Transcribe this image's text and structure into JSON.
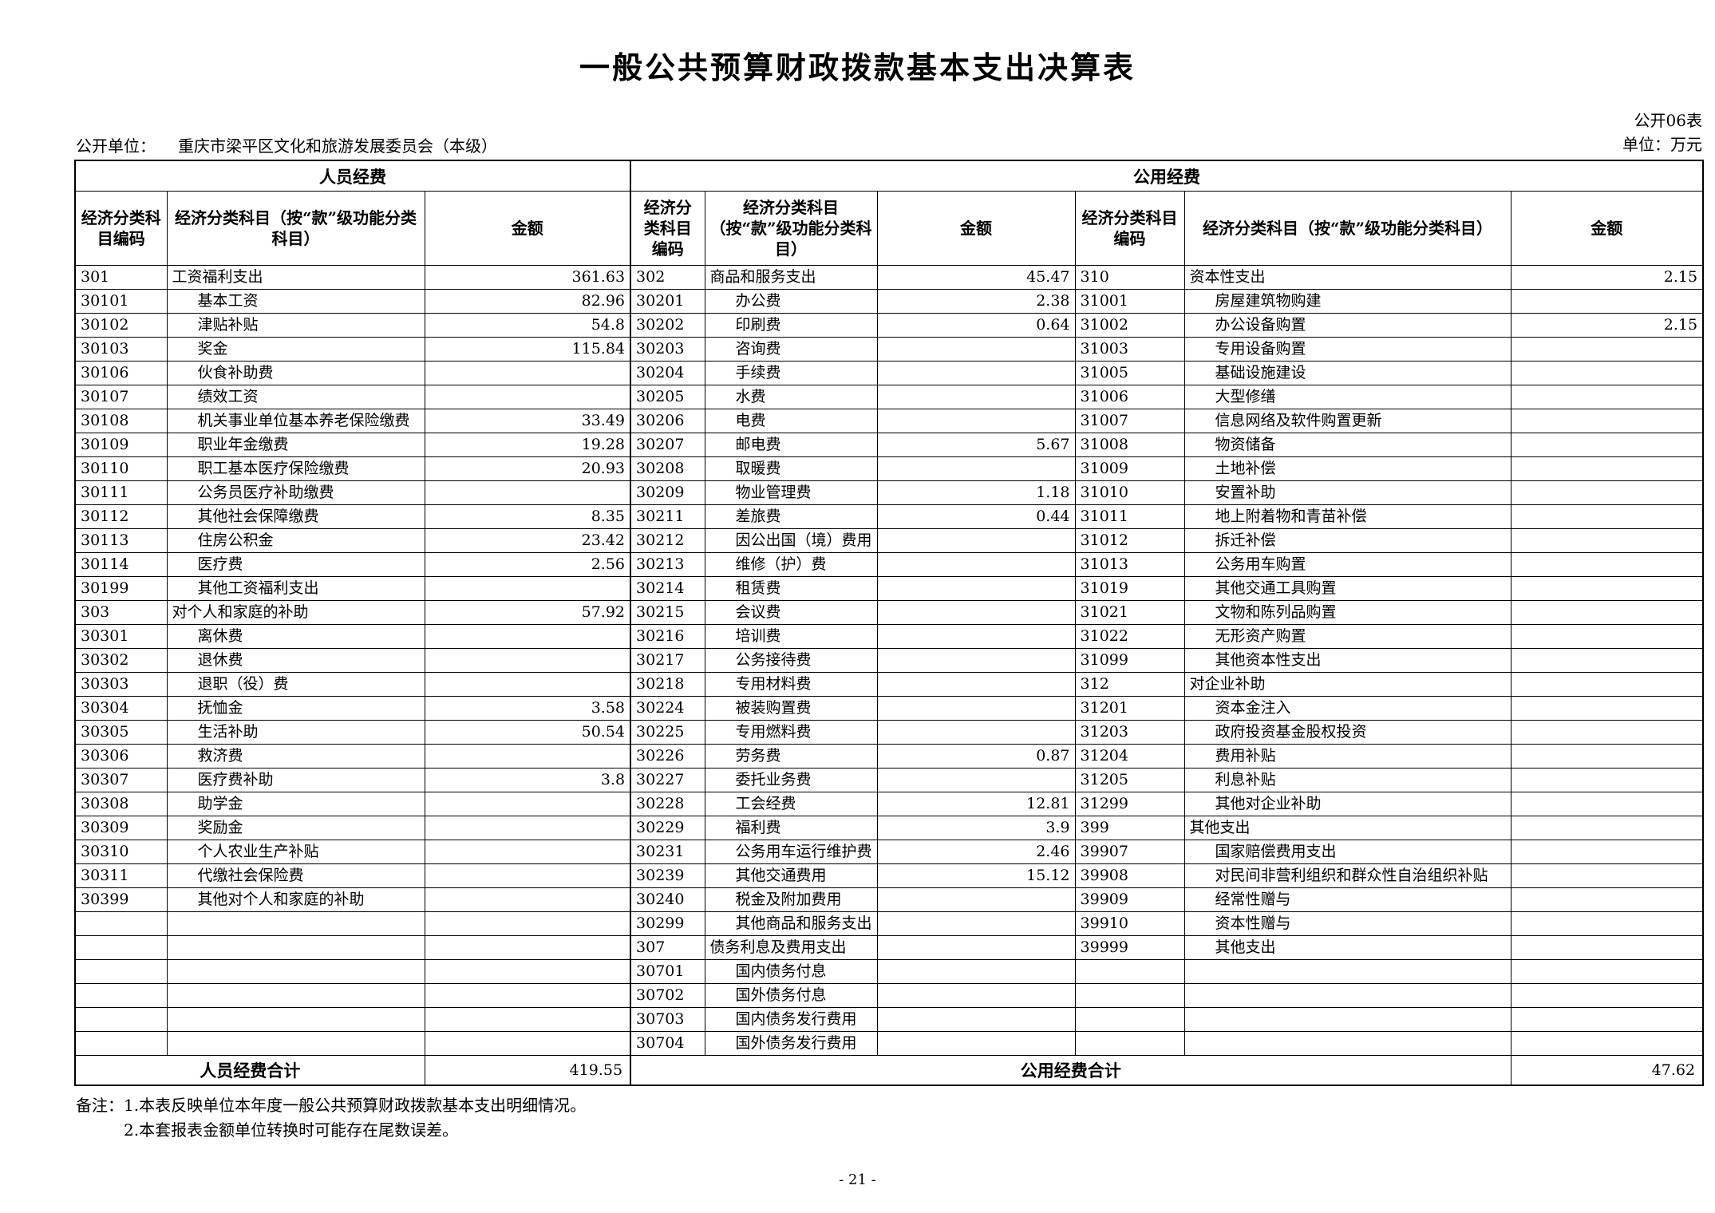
{
  "page": {
    "title": "一般公共预算财政拨款基本支出决算表",
    "form_code": "公开06表",
    "unit_label": "单位：万元",
    "publisher_label": "公开单位：",
    "publisher": "重庆市梁平区文化和旅游发展委员会（本级）",
    "notes_label": "备注：",
    "notes": [
      "1.本表反映单位本年度一般公共预算财政拨款基本支出明细情况。",
      "2.本套报表金额单位转换时可能存在尾数误差。"
    ],
    "page_number": "- 21 -"
  },
  "table": {
    "group_headers": [
      "人员经费",
      "公用经费"
    ],
    "columns": [
      "经济分类科目编码",
      "经济分类科目（按“款”级功能分类科目）",
      "金额"
    ],
    "rows": [
      [
        "301",
        "工资福利支出",
        "361.63",
        "302",
        "商品和服务支出",
        "45.47",
        "310",
        "资本性支出",
        "2.15"
      ],
      [
        "30101",
        "基本工资",
        "82.96",
        "30201",
        "办公费",
        "2.38",
        "31001",
        "房屋建筑物购建",
        ""
      ],
      [
        "30102",
        "津贴补贴",
        "54.8",
        "30202",
        "印刷费",
        "0.64",
        "31002",
        "办公设备购置",
        "2.15"
      ],
      [
        "30103",
        "奖金",
        "115.84",
        "30203",
        "咨询费",
        "",
        "31003",
        "专用设备购置",
        ""
      ],
      [
        "30106",
        "伙食补助费",
        "",
        "30204",
        "手续费",
        "",
        "31005",
        "基础设施建设",
        ""
      ],
      [
        "30107",
        "绩效工资",
        "",
        "30205",
        "水费",
        "",
        "31006",
        "大型修缮",
        ""
      ],
      [
        "30108",
        "机关事业单位基本养老保险缴费",
        "33.49",
        "30206",
        "电费",
        "",
        "31007",
        "信息网络及软件购置更新",
        ""
      ],
      [
        "30109",
        "职业年金缴费",
        "19.28",
        "30207",
        "邮电费",
        "5.67",
        "31008",
        "物资储备",
        ""
      ],
      [
        "30110",
        "职工基本医疗保险缴费",
        "20.93",
        "30208",
        "取暖费",
        "",
        "31009",
        "土地补偿",
        ""
      ],
      [
        "30111",
        "公务员医疗补助缴费",
        "",
        "30209",
        "物业管理费",
        "1.18",
        "31010",
        "安置补助",
        ""
      ],
      [
        "30112",
        "其他社会保障缴费",
        "8.35",
        "30211",
        "差旅费",
        "0.44",
        "31011",
        "地上附着物和青苗补偿",
        ""
      ],
      [
        "30113",
        "住房公积金",
        "23.42",
        "30212",
        "因公出国（境）费用",
        "",
        "31012",
        "拆迁补偿",
        ""
      ],
      [
        "30114",
        "医疗费",
        "2.56",
        "30213",
        "维修（护）费",
        "",
        "31013",
        "公务用车购置",
        ""
      ],
      [
        "30199",
        "其他工资福利支出",
        "",
        "30214",
        "租赁费",
        "",
        "31019",
        "其他交通工具购置",
        ""
      ],
      [
        "303",
        "对个人和家庭的补助",
        "57.92",
        "30215",
        "会议费",
        "",
        "31021",
        "文物和陈列品购置",
        ""
      ],
      [
        "30301",
        "离休费",
        "",
        "30216",
        "培训费",
        "",
        "31022",
        "无形资产购置",
        ""
      ],
      [
        "30302",
        "退休费",
        "",
        "30217",
        "公务接待费",
        "",
        "31099",
        "其他资本性支出",
        ""
      ],
      [
        "30303",
        "退职（役）费",
        "",
        "30218",
        "专用材料费",
        "",
        "312",
        "对企业补助",
        ""
      ],
      [
        "30304",
        "抚恤金",
        "3.58",
        "30224",
        "被装购置费",
        "",
        "31201",
        "资本金注入",
        ""
      ],
      [
        "30305",
        "生活补助",
        "50.54",
        "30225",
        "专用燃料费",
        "",
        "31203",
        "政府投资基金股权投资",
        ""
      ],
      [
        "30306",
        "救济费",
        "",
        "30226",
        "劳务费",
        "0.87",
        "31204",
        "费用补贴",
        ""
      ],
      [
        "30307",
        "医疗费补助",
        "3.8",
        "30227",
        "委托业务费",
        "",
        "31205",
        "利息补贴",
        ""
      ],
      [
        "30308",
        "助学金",
        "",
        "30228",
        "工会经费",
        "12.81",
        "31299",
        "其他对企业补助",
        ""
      ],
      [
        "30309",
        "奖励金",
        "",
        "30229",
        "福利费",
        "3.9",
        "399",
        "其他支出",
        ""
      ],
      [
        "30310",
        "个人农业生产补贴",
        "",
        "30231",
        "公务用车运行维护费",
        "2.46",
        "39907",
        "国家赔偿费用支出",
        ""
      ],
      [
        "30311",
        "代缴社会保险费",
        "",
        "30239",
        "其他交通费用",
        "15.12",
        "39908",
        "对民间非营利组织和群众性自治组织补贴",
        ""
      ],
      [
        "30399",
        "其他对个人和家庭的补助",
        "",
        "30240",
        "税金及附加费用",
        "",
        "39909",
        "经常性赠与",
        ""
      ],
      [
        "",
        "",
        "",
        "30299",
        "其他商品和服务支出",
        "",
        "39910",
        "资本性赠与",
        ""
      ],
      [
        "",
        "",
        "",
        "307",
        "债务利息及费用支出",
        "",
        "39999",
        "其他支出",
        ""
      ],
      [
        "",
        "",
        "",
        "30701",
        "国内债务付息",
        "",
        "",
        "",
        ""
      ],
      [
        "",
        "",
        "",
        "30702",
        "国外债务付息",
        "",
        "",
        "",
        ""
      ],
      [
        "",
        "",
        "",
        "30703",
        "国内债务发行费用",
        "",
        "",
        "",
        ""
      ],
      [
        "",
        "",
        "",
        "30704",
        "国外债务发行费用",
        "",
        "",
        "",
        ""
      ]
    ],
    "totals": {
      "left_label": "人员经费合计",
      "left_amount": "419.55",
      "right_label": "公用经费合计",
      "right_amount": "47.62"
    }
  }
}
